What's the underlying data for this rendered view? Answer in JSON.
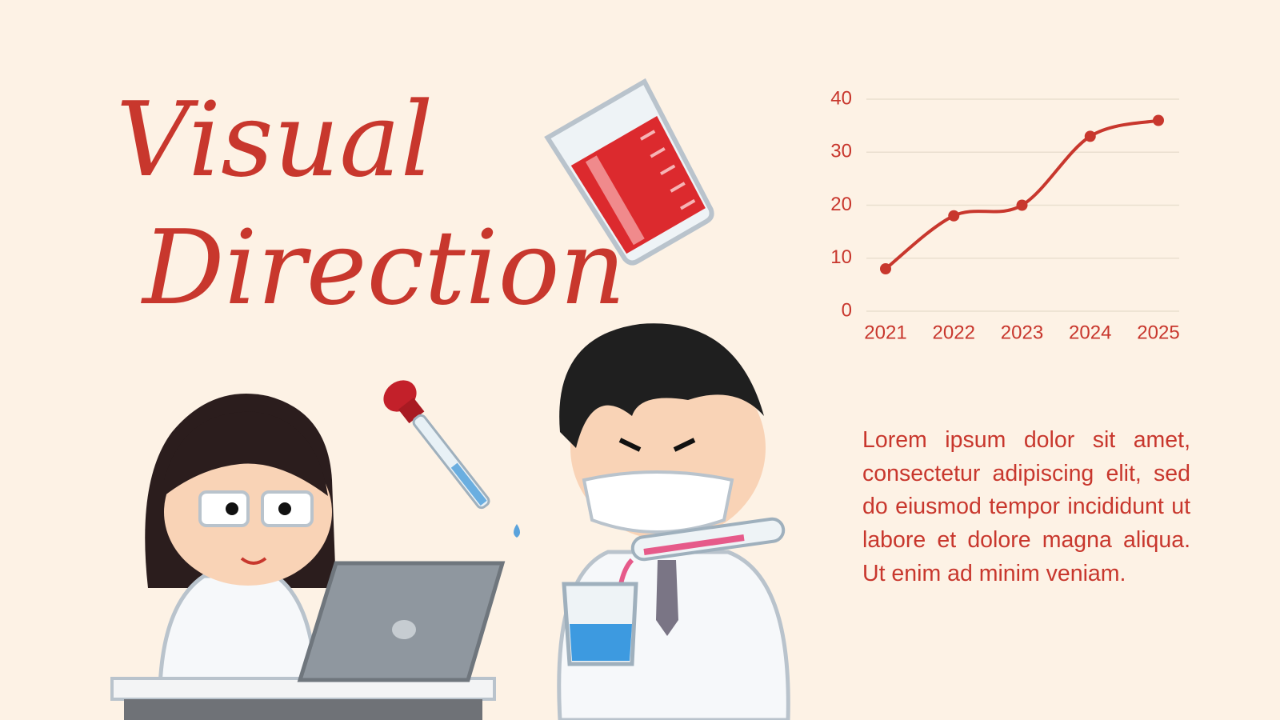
{
  "title_lines": [
    "Visual",
    "Direction"
  ],
  "body": "Lorem ipsum dolor sit amet, consectetur adipiscing elit, sed do eiusmod tempor incididunt ut labore et dolore magna aliqua. Ut enim ad minim veniam.",
  "chart_data": {
    "type": "line",
    "categories": [
      "2021",
      "2022",
      "2023",
      "2024",
      "2025"
    ],
    "values": [
      8,
      18,
      20,
      33,
      36
    ],
    "color": "#c8372d",
    "ylim": [
      0,
      40
    ],
    "yticks": [
      0,
      10,
      20,
      30,
      40
    ],
    "grid": true,
    "smooth": true
  }
}
